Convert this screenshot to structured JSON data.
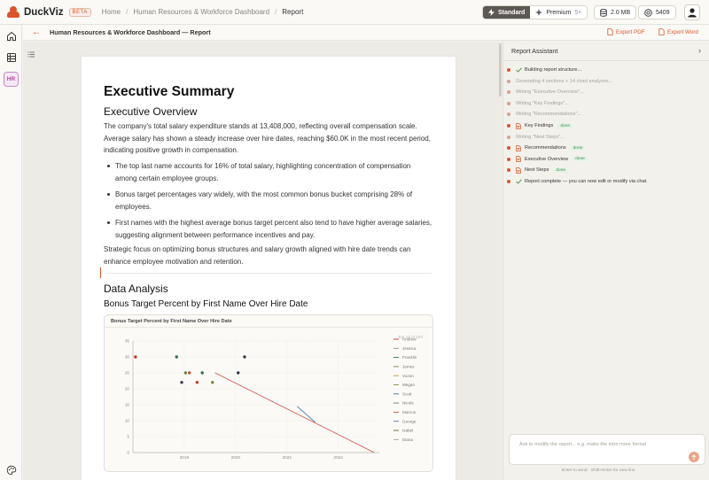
{
  "app": {
    "name": "DuckViz",
    "badge": "BETA"
  },
  "breadcrumb": [
    "Home",
    "Human Resources & Workforce Dashboard",
    "Report"
  ],
  "plans": {
    "standard": "Standard",
    "premium": "Premium",
    "premium_multiplier": "5×"
  },
  "stats": {
    "storage": "2.0 MB",
    "credits": "5409"
  },
  "rail": {
    "hr_label": "HR"
  },
  "report": {
    "title": "Human Resources & Workforce Dashboard — Report",
    "export_pdf": "Export PDF",
    "export_word": "Export Word"
  },
  "document": {
    "h1": "Executive Summary",
    "overview_heading": "Executive Overview",
    "overview_text": "The company's total salary expenditure stands at 13,408,000, reflecting overall compensation scale. Average salary has shown a steady increase over hire dates, reaching $60.0K in the most recent period, indicating positive growth in compensation.",
    "bullets": [
      "The top last name accounts for 16% of total salary, highlighting concentration of compensation among certain employee groups.",
      "Bonus target percentages vary widely, with the most common bonus bucket comprising 28% of employees.",
      "First names with the highest average bonus target percent also tend to have higher average salaries, suggesting alignment between performance incentives and pay."
    ],
    "closing_text": "Strategic focus on optimizing bonus structures and salary growth aligned with hire date trends can enhance employee motivation and retention.",
    "analysis_heading": "Data Analysis",
    "chart_heading": "Bonus Target Percent by First Name Over Hire Date"
  },
  "chart_data": {
    "type": "scatter",
    "title": "Bonus Target Percent by First Name Over Hire Date",
    "xlabel": "",
    "ylabel": "",
    "x_ticks": [
      "2018",
      "2020",
      "2022",
      "2024"
    ],
    "y_ticks": [
      "0",
      "5",
      "10",
      "15",
      "20",
      "25",
      "30",
      "35"
    ],
    "xlim": [
      2016.0,
      2025.6
    ],
    "ylim": [
      0,
      35
    ],
    "grid": true,
    "legend_position": "right",
    "legend_overlay_text": "Top 12 of 103",
    "series": [
      {
        "name": "Andrew",
        "color": "#c0392b"
      },
      {
        "name": "Jessica",
        "color": "#8d9098"
      },
      {
        "name": "Franklin",
        "color": "#2f6f4f"
      },
      {
        "name": "James",
        "color": "#6f8a3c"
      },
      {
        "name": "Vuzon",
        "color": "#b49a3a"
      },
      {
        "name": "Megan",
        "color": "#7d8f3f"
      },
      {
        "name": "Scott",
        "color": "#3a6fa8"
      },
      {
        "name": "Nicole",
        "color": "#5a7f5a"
      },
      {
        "name": "Marcus",
        "color": "#c8503a"
      },
      {
        "name": "George",
        "color": "#5b7ea3"
      },
      {
        "name": "Isabel",
        "color": "#4d6a3c"
      },
      {
        "name": "Diana",
        "color": "#a0a0a0"
      }
    ],
    "points": [
      {
        "x": 2016.1,
        "y": 30,
        "color": "#c0392b"
      },
      {
        "x": 2017.7,
        "y": 30,
        "color": "#2f6f4f"
      },
      {
        "x": 2017.9,
        "y": 22,
        "color": "#2f3a4a"
      },
      {
        "x": 2018.05,
        "y": 25,
        "color": "#6f8a3c"
      },
      {
        "x": 2018.2,
        "y": 25,
        "color": "#c8503a"
      },
      {
        "x": 2018.5,
        "y": 22,
        "color": "#c0392b"
      },
      {
        "x": 2018.7,
        "y": 25,
        "color": "#2f6f4f"
      },
      {
        "x": 2019.1,
        "y": 22,
        "color": "#6f8a3c"
      },
      {
        "x": 2020.1,
        "y": 25,
        "color": "#2f3a4a"
      },
      {
        "x": 2020.35,
        "y": 30,
        "color": "#2f3a4a"
      }
    ],
    "lines": [
      {
        "name": "Marcus",
        "color": "#c8503a",
        "points": [
          [
            2019.2,
            25
          ],
          [
            2025.4,
            0
          ]
        ]
      },
      {
        "name": "Scott",
        "color": "#3a6fa8",
        "points": [
          [
            2022.4,
            14.5
          ],
          [
            2023.1,
            9.5
          ]
        ]
      }
    ]
  },
  "assistant": {
    "title": "Report Assistant",
    "log": [
      {
        "text": "Building report structure...",
        "icon": "check",
        "muted": false
      },
      {
        "text": "Generating 4 sections + 14 chart analyses...",
        "icon": "",
        "muted": true
      },
      {
        "text": "Writing \"Executive Overview\"...",
        "icon": "",
        "muted": true
      },
      {
        "text": "Writing \"Key Findings\"...",
        "icon": "",
        "muted": true
      },
      {
        "text": "Writing \"Recommendations\"...",
        "icon": "",
        "muted": true
      },
      {
        "text": "Key Findings",
        "icon": "doc",
        "muted": false,
        "badge": "done"
      },
      {
        "text": "Writing \"Next Steps\"...",
        "icon": "",
        "muted": true
      },
      {
        "text": "Recommendations",
        "icon": "doc",
        "muted": false,
        "badge": "done"
      },
      {
        "text": "Executive Overview",
        "icon": "doc",
        "muted": false,
        "badge": "done"
      },
      {
        "text": "Next Steps",
        "icon": "doc",
        "muted": false,
        "badge": "done"
      },
      {
        "text": "Report complete — you can now edit or modify via chat.",
        "icon": "check",
        "muted": false
      }
    ],
    "input_placeholder": "Ask to modify the report... e.g. make the intro more formal",
    "hint": "Enter to send · Shift+Enter for new line"
  },
  "colors": {
    "accent": "#d9542b",
    "hr_accent": "#b0499f",
    "done_green": "#3e8e4f"
  }
}
